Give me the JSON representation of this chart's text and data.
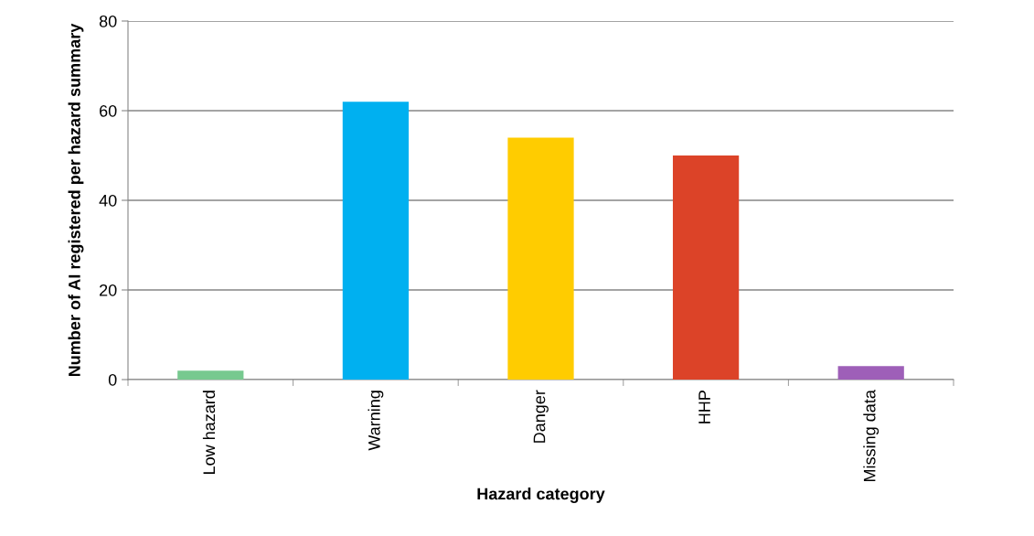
{
  "chart_data": {
    "type": "bar",
    "xlabel": "Hazard category",
    "ylabel": "Number of AI registered per hazard summary",
    "categories": [
      "Low hazard",
      "Warning",
      "Danger",
      "HHP",
      "Missing data"
    ],
    "values": [
      2,
      62,
      54,
      50,
      3
    ],
    "colors": [
      "#77c98f",
      "#00b0f0",
      "#ffcc00",
      "#dc4328",
      "#9e5fb8"
    ],
    "ylim": [
      0,
      80
    ],
    "yticks": [
      0,
      20,
      40,
      60,
      80
    ],
    "grid": "y",
    "legend": false
  }
}
